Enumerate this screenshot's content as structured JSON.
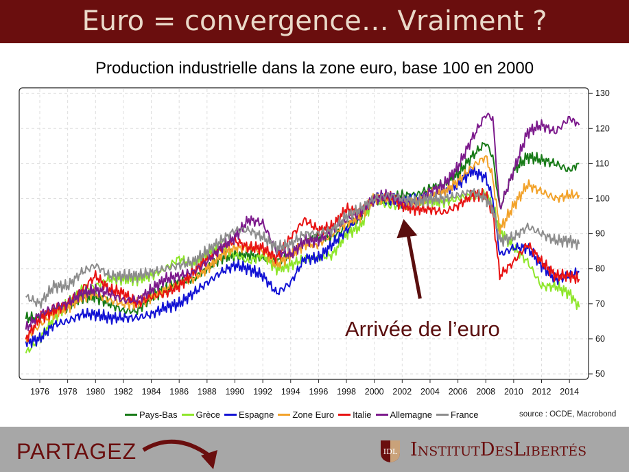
{
  "header": {
    "title": "Euro = convergence… Vraiment ?"
  },
  "footer": {
    "share_label": "PARTAGEZ",
    "brand": "InstitutDesLibertés",
    "logo_text": "IDL"
  },
  "chart_data": {
    "type": "line",
    "title": "Production industrielle dans la zone euro, base 100 en 2000",
    "source": "source : OCDE, Macrobond",
    "annotation": "Arrivée de l’euro",
    "annotation_color": "#5a0e0e",
    "annotation_points_to": {
      "x": 2002.3,
      "y": 93
    },
    "xlim": [
      1975,
      2014.8
    ],
    "ylim": [
      48,
      132
    ],
    "yaxis_side": "right",
    "grid": true,
    "legend_position": "bottom",
    "xticks": [
      1976,
      1978,
      1980,
      1982,
      1984,
      1986,
      1988,
      1990,
      1992,
      1994,
      1996,
      1998,
      2000,
      2002,
      2004,
      2006,
      2008,
      2010,
      2012,
      2014
    ],
    "yticks": [
      50,
      60,
      70,
      80,
      90,
      100,
      110,
      120,
      130
    ],
    "x": [
      1975,
      1976,
      1977,
      1978,
      1979,
      1980,
      1981,
      1982,
      1983,
      1984,
      1985,
      1986,
      1987,
      1988,
      1989,
      1990,
      1991,
      1992,
      1993,
      1994,
      1995,
      1996,
      1997,
      1998,
      1999,
      2000,
      2001,
      2002,
      2003,
      2004,
      2005,
      2006,
      2007,
      2008,
      2008.5,
      2009,
      2010,
      2011,
      2012,
      2013,
      2014,
      2014.7
    ],
    "series": [
      {
        "name": "Pays-Bas",
        "color": "#177a17",
        "values": [
          66,
          66,
          68,
          69,
          72,
          72,
          70,
          68,
          68,
          72,
          74,
          76,
          77,
          80,
          83,
          84,
          84,
          83,
          82,
          84,
          88,
          89,
          89,
          92,
          95,
          100,
          100,
          101,
          101,
          103,
          104,
          107,
          112,
          116,
          112,
          97,
          108,
          112,
          111,
          110,
          108,
          110
        ]
      },
      {
        "name": "Grèce",
        "color": "#8ee62a",
        "values": [
          56,
          60,
          66,
          70,
          74,
          75,
          77,
          77,
          77,
          78,
          80,
          83,
          81,
          84,
          86,
          84,
          82,
          84,
          80,
          81,
          83,
          83,
          84,
          90,
          92,
          100,
          98,
          98,
          99,
          99,
          99,
          100,
          101,
          101,
          98,
          91,
          86,
          82,
          75,
          75,
          73,
          69
        ]
      },
      {
        "name": "Espagne",
        "color": "#1212d4",
        "values": [
          59,
          60,
          64,
          65,
          67,
          67,
          66,
          66,
          66,
          67,
          69,
          70,
          73,
          76,
          79,
          81,
          80,
          78,
          73,
          76,
          83,
          83,
          87,
          91,
          95,
          100,
          100,
          99,
          100,
          101,
          102,
          104,
          108,
          106,
          100,
          84,
          86,
          86,
          81,
          77,
          78,
          79
        ]
      },
      {
        "name": "Zone Euro",
        "color": "#f2a22a",
        "values": [
          60,
          64,
          67,
          69,
          72,
          73,
          71,
          70,
          70,
          72,
          74,
          76,
          77,
          80,
          84,
          86,
          86,
          85,
          81,
          84,
          87,
          87,
          90,
          93,
          95,
          100,
          100,
          99,
          99,
          101,
          102,
          105,
          109,
          112,
          106,
          91,
          98,
          104,
          102,
          100,
          101,
          101
        ]
      },
      {
        "name": "Italie",
        "color": "#e81212",
        "values": [
          60,
          66,
          68,
          70,
          74,
          78,
          74,
          73,
          70,
          72,
          73,
          75,
          79,
          83,
          86,
          88,
          86,
          86,
          83,
          89,
          94,
          91,
          92,
          97,
          96,
          100,
          101,
          98,
          97,
          97,
          96,
          98,
          101,
          101,
          96,
          78,
          82,
          87,
          82,
          78,
          78,
          77
        ]
      },
      {
        "name": "Allemagne",
        "color": "#7c1a8c",
        "values": [
          63,
          67,
          69,
          70,
          73,
          74,
          73,
          71,
          71,
          74,
          77,
          78,
          79,
          82,
          86,
          89,
          94,
          93,
          85,
          84,
          88,
          88,
          91,
          94,
          96,
          100,
          101,
          99,
          99,
          102,
          104,
          109,
          117,
          124,
          123,
          97,
          108,
          119,
          121,
          119,
          123,
          121
        ]
      },
      {
        "name": "France",
        "color": "#8c8c8c",
        "values": [
          72,
          70,
          75,
          75,
          79,
          81,
          78,
          78,
          78,
          79,
          80,
          81,
          82,
          85,
          88,
          91,
          91,
          89,
          86,
          87,
          90,
          90,
          91,
          95,
          97,
          100,
          101,
          100,
          99,
          100,
          100,
          101,
          102,
          100,
          97,
          88,
          89,
          92,
          90,
          88,
          88,
          87
        ]
      }
    ]
  }
}
